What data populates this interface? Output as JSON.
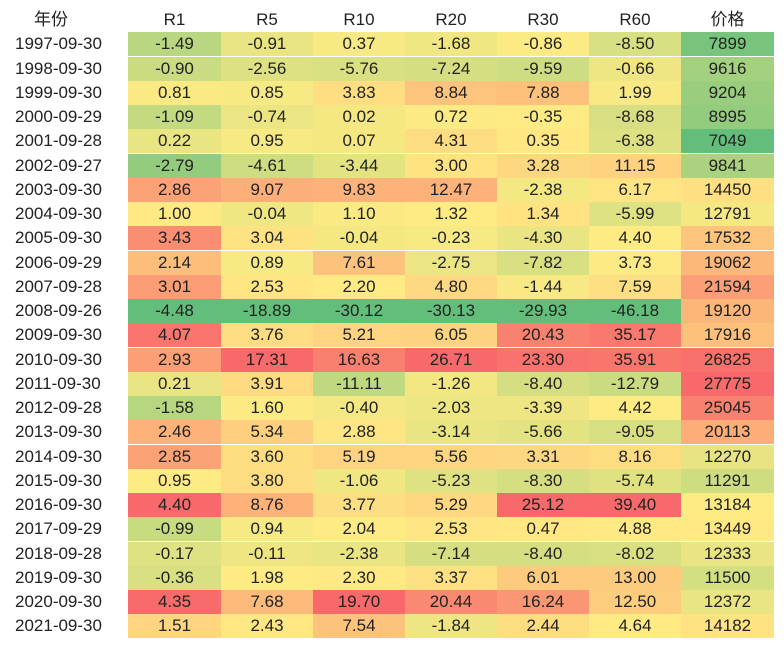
{
  "chart_data": {
    "type": "table",
    "columns": [
      "年份",
      "R1",
      "R5",
      "R10",
      "R20",
      "R30",
      "R60",
      "价格"
    ],
    "rows": [
      {
        "date": "1997-09-30",
        "values": [
          "-1.49",
          "-0.91",
          "0.37",
          "-1.68",
          "-0.86",
          "-8.50",
          "7899"
        ]
      },
      {
        "date": "1998-09-30",
        "values": [
          "-0.90",
          "-2.56",
          "-5.76",
          "-7.24",
          "-9.59",
          "-0.66",
          "9616"
        ]
      },
      {
        "date": "1999-09-30",
        "values": [
          "0.81",
          "0.85",
          "3.83",
          "8.84",
          "7.88",
          "1.99",
          "9204"
        ]
      },
      {
        "date": "2000-09-29",
        "values": [
          "-1.09",
          "-0.74",
          "0.02",
          "0.72",
          "-0.35",
          "-8.68",
          "8995"
        ]
      },
      {
        "date": "2001-09-28",
        "values": [
          "0.22",
          "0.95",
          "0.07",
          "4.31",
          "0.35",
          "-6.38",
          "7049"
        ]
      },
      {
        "date": "2002-09-27",
        "values": [
          "-2.79",
          "-4.61",
          "-3.44",
          "3.00",
          "3.28",
          "11.15",
          "9841"
        ]
      },
      {
        "date": "2003-09-30",
        "values": [
          "2.86",
          "9.07",
          "9.83",
          "12.47",
          "-2.38",
          "6.17",
          "14450"
        ]
      },
      {
        "date": "2004-09-30",
        "values": [
          "1.00",
          "-0.04",
          "1.10",
          "1.32",
          "1.34",
          "-5.99",
          "12791"
        ]
      },
      {
        "date": "2005-09-30",
        "values": [
          "3.43",
          "3.04",
          "-0.04",
          "-0.23",
          "-4.30",
          "4.40",
          "17532"
        ]
      },
      {
        "date": "2006-09-29",
        "values": [
          "2.14",
          "0.89",
          "7.61",
          "-2.75",
          "-7.82",
          "3.73",
          "19062"
        ]
      },
      {
        "date": "2007-09-28",
        "values": [
          "3.01",
          "2.53",
          "2.20",
          "4.80",
          "-1.44",
          "7.59",
          "21594"
        ]
      },
      {
        "date": "2008-09-26",
        "values": [
          "-4.48",
          "-18.89",
          "-30.12",
          "-30.13",
          "-29.93",
          "-46.18",
          "19120"
        ]
      },
      {
        "date": "2009-09-30",
        "values": [
          "4.07",
          "3.76",
          "5.21",
          "6.05",
          "20.43",
          "35.17",
          "17916"
        ]
      },
      {
        "date": "2010-09-30",
        "values": [
          "2.93",
          "17.31",
          "16.63",
          "26.71",
          "23.30",
          "35.91",
          "26825"
        ]
      },
      {
        "date": "2011-09-30",
        "values": [
          "0.21",
          "3.91",
          "-11.11",
          "-1.26",
          "-8.40",
          "-12.79",
          "27775"
        ]
      },
      {
        "date": "2012-09-28",
        "values": [
          "-1.58",
          "1.60",
          "-0.40",
          "-2.03",
          "-3.39",
          "4.42",
          "25045"
        ]
      },
      {
        "date": "2013-09-30",
        "values": [
          "2.46",
          "5.34",
          "2.88",
          "-3.14",
          "-5.66",
          "-9.05",
          "20113"
        ]
      },
      {
        "date": "2014-09-30",
        "values": [
          "2.85",
          "3.60",
          "5.19",
          "5.56",
          "3.31",
          "8.16",
          "12270"
        ]
      },
      {
        "date": "2015-09-30",
        "values": [
          "0.95",
          "3.80",
          "-1.06",
          "-5.23",
          "-8.30",
          "-5.74",
          "11291"
        ]
      },
      {
        "date": "2016-09-30",
        "values": [
          "4.40",
          "8.76",
          "3.77",
          "5.29",
          "25.12",
          "39.40",
          "13184"
        ]
      },
      {
        "date": "2017-09-29",
        "values": [
          "-0.99",
          "0.94",
          "2.04",
          "2.53",
          "0.47",
          "4.88",
          "13449"
        ]
      },
      {
        "date": "2018-09-28",
        "values": [
          "-0.17",
          "-0.11",
          "-2.38",
          "-7.14",
          "-8.40",
          "-8.02",
          "12333"
        ]
      },
      {
        "date": "2019-09-30",
        "values": [
          "-0.36",
          "1.98",
          "2.30",
          "3.37",
          "6.01",
          "13.00",
          "11500"
        ]
      },
      {
        "date": "2020-09-30",
        "values": [
          "4.35",
          "7.68",
          "19.70",
          "20.44",
          "16.24",
          "12.50",
          "12372"
        ]
      },
      {
        "date": "2021-09-30",
        "values": [
          "1.51",
          "2.43",
          "7.54",
          "-1.84",
          "2.44",
          "4.64",
          "14182"
        ]
      }
    ],
    "colors": {
      "low": "#63be7b",
      "mid": "#ffeb84",
      "high": "#f8696b"
    }
  }
}
